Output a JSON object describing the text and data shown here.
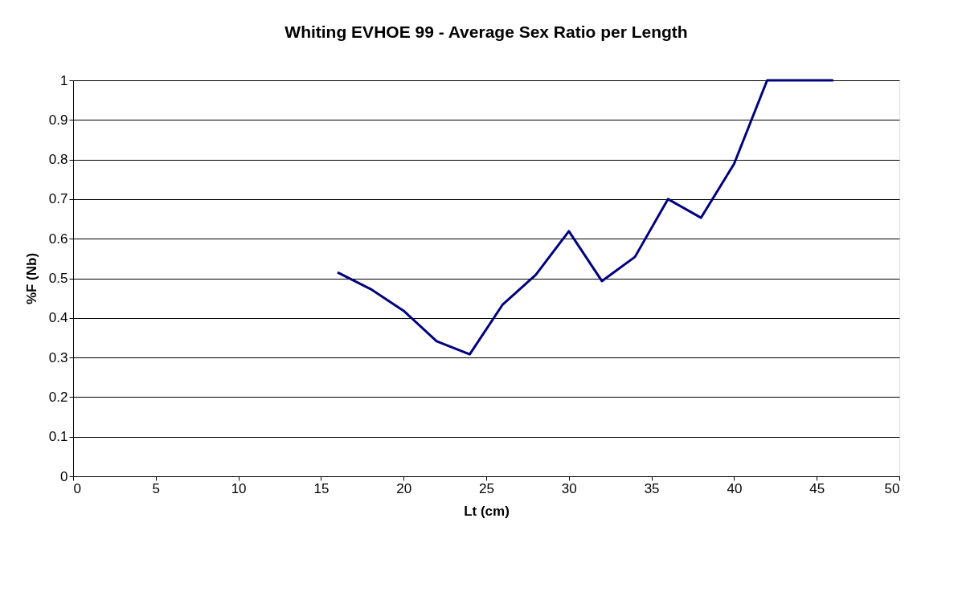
{
  "chart_data": {
    "type": "line",
    "title": "Whiting EVHOE 99 -  Average Sex Ratio per Length",
    "xlabel": "Lt (cm)",
    "ylabel": "%F (Nb)",
    "x": [
      16,
      18,
      20,
      22,
      24,
      26,
      28,
      30,
      32,
      34,
      36,
      38,
      40,
      42,
      44,
      46
    ],
    "series": [
      {
        "color": "#000080",
        "values": [
          0.515,
          0.473,
          0.418,
          0.341,
          0.308,
          0.434,
          0.509,
          0.619,
          0.493,
          0.554,
          0.7,
          0.653,
          0.789,
          1.0,
          1.0,
          1.0
        ]
      }
    ],
    "xlim": [
      0,
      50
    ],
    "xticks": [
      0,
      5,
      10,
      15,
      20,
      25,
      30,
      35,
      40,
      45,
      50
    ],
    "ylim": [
      0,
      1
    ],
    "yticks": [
      0,
      0.1,
      0.2,
      0.3,
      0.4,
      0.5,
      0.6,
      0.7,
      0.8,
      0.9,
      1
    ],
    "grid": "y",
    "legend": false,
    "marker": "none",
    "line_style": "solid"
  }
}
